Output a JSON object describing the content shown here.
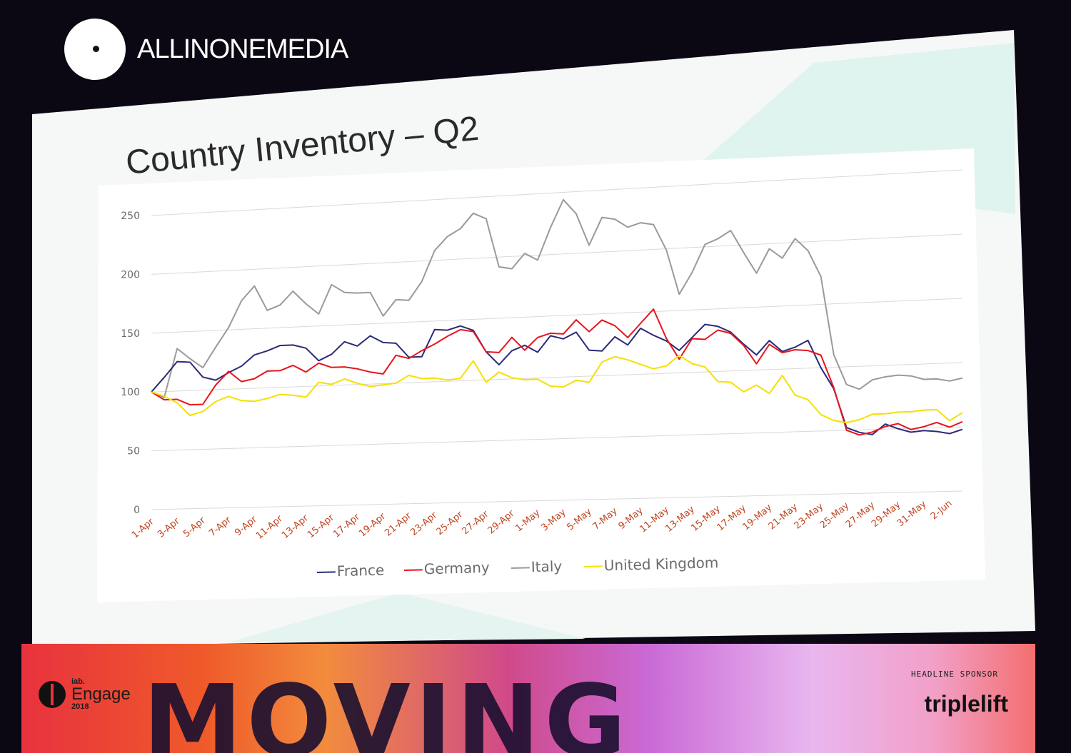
{
  "watermark": {
    "text": "ALLINONEMEDIA"
  },
  "slide": {
    "title": "Country Inventory – Q2"
  },
  "banner": {
    "iab": "iab.",
    "engage": "Engage",
    "year": "2018",
    "theme": "MOVING",
    "sponsor_label": "HEADLINE SPONSOR",
    "sponsor": "triplelift"
  },
  "colors": {
    "France": "#2b2a78",
    "Germany": "#e8141b",
    "Italy": "#9a9a9a",
    "United Kingdom": "#f5e000",
    "tick_label": "#c0431f"
  },
  "chart_data": {
    "type": "line",
    "title": "Country Inventory – Q2",
    "xlabel": "",
    "ylabel": "",
    "ylim": [
      0,
      250
    ],
    "yticks": [
      0,
      50,
      100,
      150,
      200,
      250
    ],
    "grid": true,
    "legend_position": "bottom",
    "x": [
      "1-Apr",
      "2-Apr",
      "3-Apr",
      "4-Apr",
      "5-Apr",
      "6-Apr",
      "7-Apr",
      "8-Apr",
      "9-Apr",
      "10-Apr",
      "11-Apr",
      "12-Apr",
      "13-Apr",
      "14-Apr",
      "15-Apr",
      "16-Apr",
      "17-Apr",
      "18-Apr",
      "19-Apr",
      "20-Apr",
      "21-Apr",
      "22-Apr",
      "23-Apr",
      "24-Apr",
      "25-Apr",
      "26-Apr",
      "27-Apr",
      "28-Apr",
      "29-Apr",
      "30-Apr",
      "1-May",
      "2-May",
      "3-May",
      "4-May",
      "5-May",
      "6-May",
      "7-May",
      "8-May",
      "9-May",
      "10-May",
      "11-May",
      "12-May",
      "13-May",
      "14-May",
      "15-May",
      "16-May",
      "17-May",
      "18-May",
      "19-May",
      "20-May",
      "21-May",
      "22-May",
      "23-May",
      "24-May",
      "25-May",
      "26-May",
      "27-May",
      "28-May",
      "29-May",
      "30-May",
      "31-May",
      "1-Jun",
      "2-Jun",
      "3-Jun"
    ],
    "x_tick_labels": [
      "1-Apr",
      "3-Apr",
      "5-Apr",
      "7-Apr",
      "9-Apr",
      "11-Apr",
      "13-Apr",
      "15-Apr",
      "17-Apr",
      "19-Apr",
      "21-Apr",
      "23-Apr",
      "25-Apr",
      "27-Apr",
      "29-Apr",
      "1-May",
      "3-May",
      "5-May",
      "7-May",
      "9-May",
      "11-May",
      "13-May",
      "15-May",
      "17-May",
      "19-May",
      "21-May",
      "23-May",
      "25-May",
      "27-May",
      "29-May",
      "31-May",
      "2-Jun"
    ],
    "series": [
      {
        "name": "France",
        "values": [
          100,
          112,
          125,
          124,
          111,
          108,
          114,
          119,
          128,
          131,
          135,
          135,
          132,
          121,
          126,
          136,
          132,
          140,
          134,
          133,
          121,
          121,
          143,
          142,
          145,
          141,
          123,
          112,
          123,
          127,
          121,
          134,
          131,
          136,
          121,
          120,
          131,
          124,
          137,
          131,
          126,
          118,
          128,
          138,
          136,
          131,
          121,
          112,
          123,
          114,
          117,
          122,
          100,
          83,
          52,
          48,
          46,
          54,
          50,
          47,
          48,
          47,
          45,
          48
        ]
      },
      {
        "name": "Germany",
        "values": [
          100,
          93,
          93,
          88,
          88,
          104,
          115,
          106,
          108,
          114,
          114,
          118,
          112,
          119,
          115,
          115,
          113,
          110,
          108,
          123,
          120,
          126,
          131,
          137,
          142,
          140,
          123,
          122,
          134,
          123,
          133,
          136,
          135,
          146,
          136,
          145,
          140,
          130,
          141,
          152,
          128,
          111,
          127,
          126,
          133,
          130,
          120,
          105,
          120,
          113,
          115,
          114,
          110,
          84,
          50,
          46,
          48,
          52,
          54,
          49,
          51,
          54,
          50,
          54
        ]
      },
      {
        "name": "Italy",
        "values": [
          100,
          95,
          136,
          127,
          119,
          136,
          152,
          174,
          186,
          165,
          169,
          180,
          169,
          160,
          184,
          177,
          176,
          176,
          156,
          169,
          168,
          183,
          208,
          219,
          225,
          237,
          232,
          192,
          190,
          202,
          196,
          222,
          244,
          232,
          206,
          228,
          226,
          219,
          222,
          220,
          199,
          163,
          180,
          202,
          206,
          212,
          194,
          177,
          196,
          188,
          203,
          193,
          172,
          110,
          86,
          82,
          89,
          91,
          92,
          91,
          88,
          88,
          86,
          88
        ]
      },
      {
        "name": "United Kingdom",
        "values": [
          100,
          96,
          90,
          79,
          82,
          90,
          94,
          90,
          89,
          91,
          94,
          93,
          91,
          103,
          101,
          105,
          101,
          98,
          99,
          100,
          106,
          103,
          103,
          101,
          102,
          116,
          98,
          106,
          101,
          99,
          99,
          93,
          92,
          97,
          95,
          111,
          115,
          112,
          108,
          104,
          106,
          114,
          107,
          104,
          92,
          91,
          83,
          88,
          81,
          95,
          79,
          75,
          63,
          58,
          56,
          58,
          62,
          62,
          63,
          63,
          64,
          64,
          55,
          61
        ]
      }
    ]
  }
}
